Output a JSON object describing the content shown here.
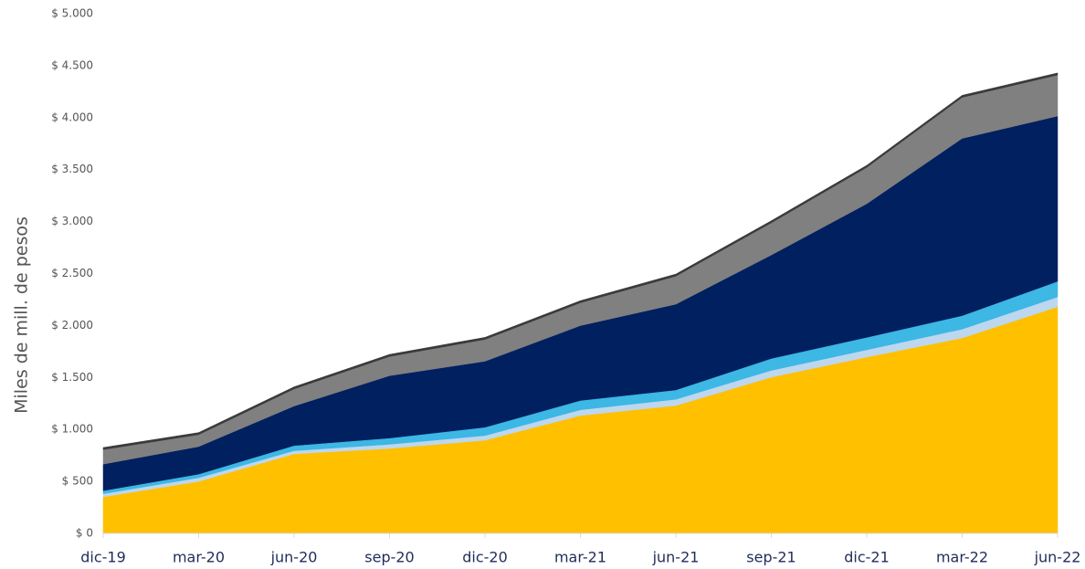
{
  "chart_data": {
    "type": "stacked_area",
    "y_label": "Miles de mill. de pesos",
    "categories": [
      "dic-19",
      "mar-20",
      "jun-20",
      "sep-20",
      "dic-20",
      "mar-21",
      "jun-21",
      "sep-21",
      "dic-21",
      "mar-22",
      "jun-22"
    ],
    "series": [
      {
        "color": "#FFC000",
        "values": [
          351,
          500,
          765,
          817,
          896,
          1134,
          1230,
          1503,
          1696,
          1880,
          2180
        ]
      },
      {
        "color": "#BDD7EE",
        "values": [
          30,
          35,
          30,
          40,
          45,
          55,
          60,
          65,
          70,
          85,
          95
        ]
      },
      {
        "color": "#3DB7E4",
        "values": [
          30,
          35,
          50,
          60,
          80,
          90,
          90,
          115,
          120,
          130,
          150
        ]
      },
      {
        "color": "#002060",
        "values": [
          255,
          265,
          380,
          600,
          635,
          720,
          825,
          995,
          1285,
          1705,
          1590
        ]
      },
      {
        "color": "#808080",
        "values": [
          140,
          115,
          165,
          185,
          210,
          220,
          270,
          310,
          350,
          395,
          395
        ]
      },
      {
        "color": "#3A3A3A",
        "values": [
          20,
          20,
          20,
          20,
          20,
          20,
          20,
          20,
          20,
          20,
          20
        ]
      }
    ],
    "ylim": [
      0,
      5000
    ],
    "yticks": [
      {
        "value": 0,
        "label": "$ 0"
      },
      {
        "value": 500,
        "label": "$ 500"
      },
      {
        "value": 1000,
        "label": "$ 1.000"
      },
      {
        "value": 1500,
        "label": "$ 1.500"
      },
      {
        "value": 2000,
        "label": "$ 2.000"
      },
      {
        "value": 2500,
        "label": "$ 2.500"
      },
      {
        "value": 3000,
        "label": "$ 3.000"
      },
      {
        "value": 3500,
        "label": "$ 3.500"
      },
      {
        "value": 4000,
        "label": "$ 4.000"
      },
      {
        "value": 4500,
        "label": "$ 4.500"
      },
      {
        "value": 5000,
        "label": "$ 5.000"
      }
    ],
    "grid": false
  }
}
